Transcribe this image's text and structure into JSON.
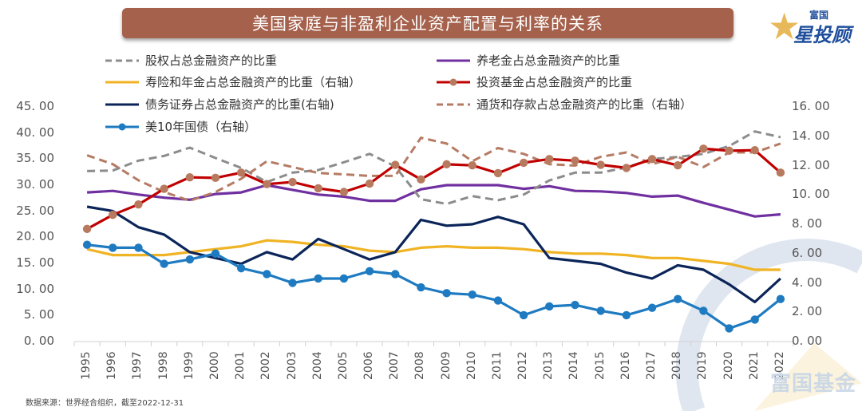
{
  "header": {
    "title": "美国家庭与非盈利企业资产配置与利率的关系",
    "logo_line1": "富国",
    "logo_line2": "星投顾"
  },
  "footer": {
    "source": "数据来源：世界经合组织，截至2022-12-31",
    "watermark": "富国基金"
  },
  "colors": {
    "title_bg": "#a5614c",
    "equity": "#8c8c8c",
    "pension": "#7030a0",
    "insurance": "#f0b323",
    "fund": "#c00000",
    "fund_marker": "#b87a5f",
    "bond": "#0b2559",
    "deposit": "#b57b64",
    "treasury": "#1f7bc1"
  },
  "chart_data": {
    "type": "line",
    "title": "美国家庭与非盈利企业资产配置与利率的关系",
    "xlabel": "",
    "ylabel_left": "",
    "ylabel_right": "",
    "ylim_left": [
      0,
      45
    ],
    "ylim_right": [
      0,
      16
    ],
    "yticks_left": [
      "0.00",
      "5.00",
      "10.00",
      "15.00",
      "20.00",
      "25.00",
      "30.00",
      "35.00",
      "40.00",
      "45.00"
    ],
    "yticks_right": [
      "0.00",
      "2.00",
      "4.00",
      "6.00",
      "8.00",
      "10.00",
      "12.00",
      "14.00",
      "16.00"
    ],
    "grid": false,
    "legend_position": "top",
    "x": [
      "1995",
      "1996",
      "1997",
      "1998",
      "1999",
      "2000",
      "2001",
      "2002",
      "2003",
      "2004",
      "2005",
      "2006",
      "2007",
      "2008",
      "2009",
      "2010",
      "2011",
      "2012",
      "2013",
      "2014",
      "2015",
      "2016",
      "2017",
      "2018",
      "2019",
      "2020",
      "2021",
      "2022"
    ],
    "series": [
      {
        "key": "equity",
        "name": "股权占总金融资产的比重",
        "axis": "left",
        "style": "dashed",
        "marker": false,
        "values": [
          32.7,
          32.8,
          34.7,
          35.6,
          37.2,
          35.2,
          33.3,
          30.6,
          32.4,
          32.9,
          34.4,
          36.0,
          33.6,
          27.3,
          26.4,
          27.9,
          27.1,
          28.2,
          30.9,
          32.4,
          32.4,
          33.4,
          35.0,
          35.4,
          36.0,
          37.5,
          40.3,
          39.2
        ]
      },
      {
        "key": "pension",
        "name": "养老金占总金融资产的比重",
        "axis": "left",
        "style": "solid",
        "marker": false,
        "values": [
          28.6,
          28.9,
          28.2,
          27.6,
          27.2,
          28.3,
          28.6,
          30.0,
          29.1,
          28.2,
          27.8,
          27.0,
          27.0,
          29.2,
          30.0,
          30.0,
          30.0,
          29.3,
          29.8,
          28.9,
          28.8,
          28.5,
          27.8,
          28.0,
          26.6,
          25.3,
          24.0,
          24.4
        ]
      },
      {
        "key": "insurance",
        "name": "寿险和年金占总金融资产的比重（右轴）",
        "axis": "right",
        "style": "solid",
        "marker": false,
        "values": [
          6.3,
          5.9,
          5.9,
          5.9,
          6.1,
          6.3,
          6.5,
          6.9,
          6.8,
          6.6,
          6.5,
          6.2,
          6.1,
          6.4,
          6.5,
          6.4,
          6.4,
          6.3,
          6.1,
          6.0,
          6.0,
          5.9,
          5.7,
          5.7,
          5.5,
          5.3,
          4.9,
          4.9
        ]
      },
      {
        "key": "fund",
        "name": "投资基金占总金融资产的比重",
        "axis": "left",
        "style": "solid",
        "marker": true,
        "values": [
          21.6,
          24.3,
          26.3,
          29.3,
          31.5,
          31.4,
          32.4,
          30.2,
          30.6,
          29.4,
          28.7,
          30.3,
          33.9,
          31.1,
          34.0,
          33.8,
          32.3,
          34.3,
          35.0,
          34.7,
          33.9,
          33.3,
          35.0,
          33.8,
          37.0,
          36.6,
          36.7,
          32.4
        ]
      },
      {
        "key": "bond",
        "name": "债务证券占总金融资产的比重(右轴)",
        "axis": "right",
        "style": "solid",
        "marker": false,
        "values": [
          9.2,
          8.9,
          7.8,
          7.3,
          6.1,
          5.7,
          5.3,
          6.1,
          5.6,
          7.0,
          6.3,
          5.6,
          6.1,
          8.3,
          7.9,
          8.0,
          8.5,
          8.0,
          5.7,
          5.5,
          5.3,
          4.7,
          4.3,
          5.2,
          4.9,
          3.9,
          2.7,
          4.3
        ]
      },
      {
        "key": "deposit",
        "name": "通货和存款占总金融资产的比重（右轴）",
        "axis": "right",
        "style": "dashed",
        "marker": false,
        "values": [
          12.7,
          12.1,
          11.0,
          10.2,
          9.6,
          10.2,
          11.1,
          12.3,
          11.9,
          11.5,
          11.4,
          11.3,
          11.3,
          13.9,
          13.5,
          12.3,
          13.2,
          12.8,
          12.1,
          12.0,
          12.6,
          12.9,
          12.1,
          12.6,
          11.9,
          12.9,
          12.9,
          13.5
        ]
      },
      {
        "key": "treasury",
        "name": "美10年国债（右轴）",
        "axis": "right",
        "style": "solid",
        "marker": true,
        "values": [
          6.6,
          6.4,
          6.4,
          5.3,
          5.6,
          6.0,
          5.0,
          4.6,
          4.0,
          4.3,
          4.3,
          4.8,
          4.6,
          3.7,
          3.3,
          3.2,
          2.8,
          1.8,
          2.4,
          2.5,
          2.1,
          1.8,
          2.3,
          2.9,
          2.1,
          0.9,
          1.5,
          2.9
        ]
      }
    ]
  }
}
